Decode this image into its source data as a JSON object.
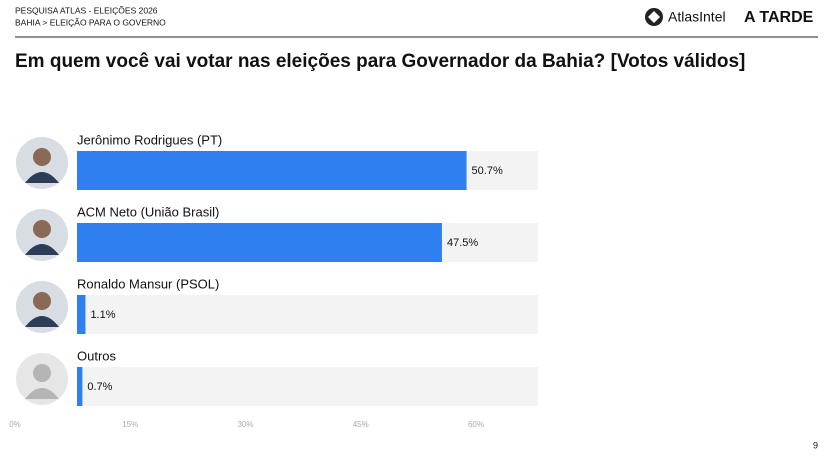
{
  "header": {
    "line1": "PESQUISA ATLAS - ELEIÇÕES 2026",
    "line2": "BAHIA > ELEIÇÃO PARA O GOVERNO",
    "logo1": "AtlasIntel",
    "logo2": "A TARDE"
  },
  "page_number": "9",
  "chart_data": {
    "type": "hbar",
    "title": "Em quem você vai votar nas eleições para Governador da Bahia? [Votos válidos]",
    "categories": [
      "Jerônimo Rodrigues (PT)",
      "ACM Neto (União Brasil)",
      "Ronaldo Mansur (PSOL)",
      "Outros"
    ],
    "values": [
      50.7,
      47.5,
      1.1,
      0.7
    ],
    "value_labels": [
      "50.7%",
      "47.5%",
      "1.1%",
      "0.7%"
    ],
    "color": "#2e7ff0",
    "xlim": [
      0,
      60
    ],
    "xticks": [
      {
        "value": 0,
        "label": "0%"
      },
      {
        "value": 15,
        "label": "15%"
      },
      {
        "value": 30,
        "label": "30%"
      },
      {
        "value": 45,
        "label": "45%"
      },
      {
        "value": 60,
        "label": "60%"
      }
    ]
  }
}
